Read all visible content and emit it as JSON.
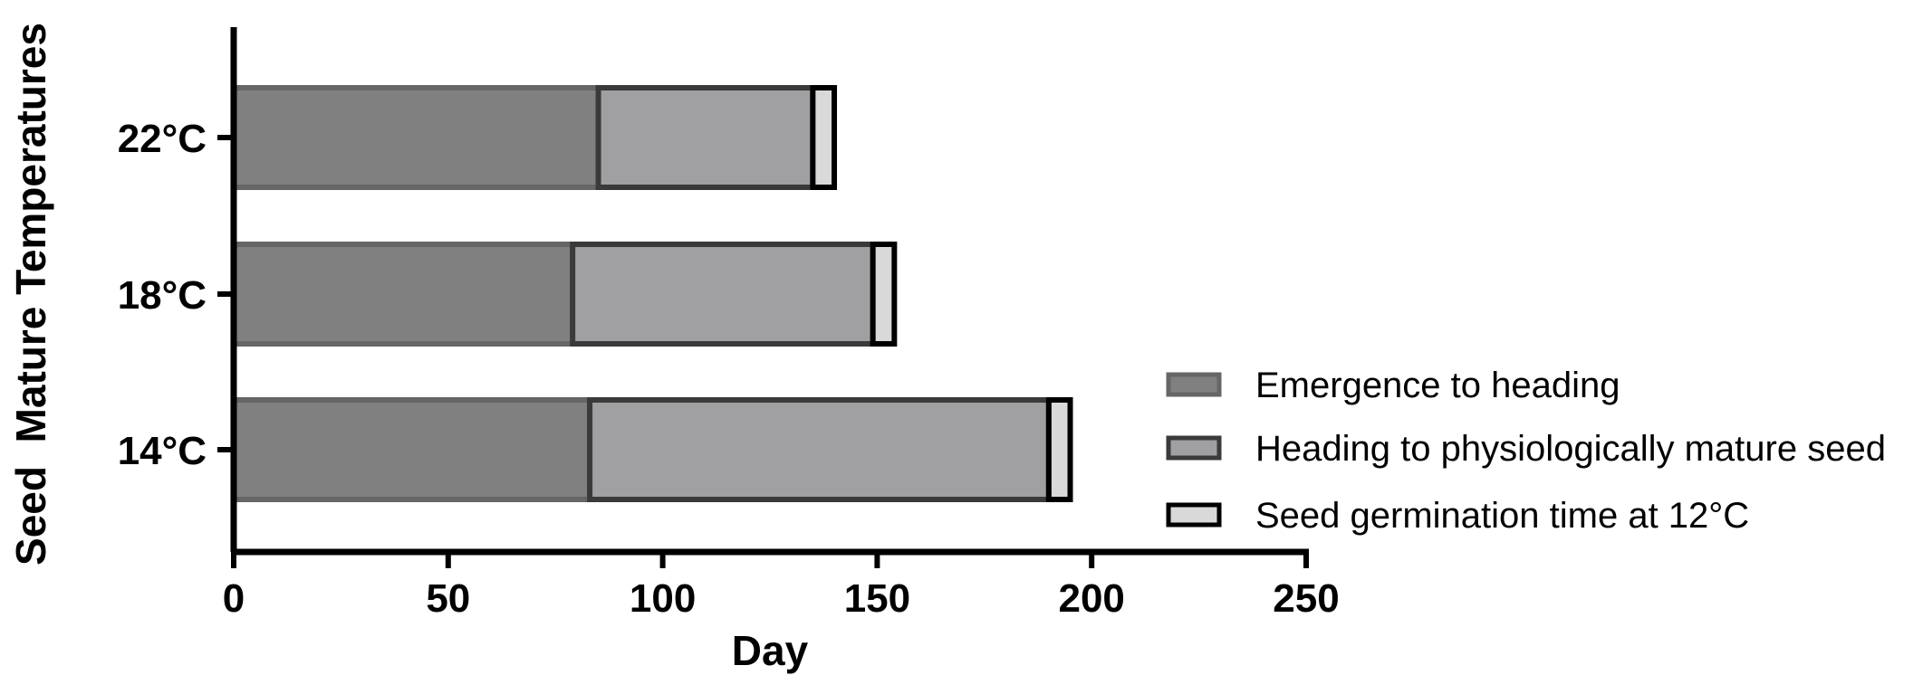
{
  "chart_data": {
    "type": "bar",
    "orientation": "horizontal",
    "stacked": true,
    "title": "",
    "xlabel": "Day",
    "ylabel": "Seed  Mature Temperatures",
    "xlim": [
      0,
      250
    ],
    "x_ticks": [
      0,
      50,
      100,
      150,
      200,
      250
    ],
    "categories": [
      "22°C",
      "18°C",
      "14°C"
    ],
    "series": [
      {
        "name": "Emergence to heading",
        "values": [
          85,
          79,
          83
        ],
        "color": "#808080",
        "stroke": "#666666"
      },
      {
        "name": "Heading to physiologically mature seed",
        "values": [
          50,
          70,
          107
        ],
        "color": "#a0a0a3",
        "stroke": "#3a3a3a"
      },
      {
        "name": "Seed germination time at 12°C",
        "values": [
          5,
          5,
          5
        ],
        "color": "#d9d9d9",
        "stroke": "#000000"
      }
    ],
    "grid": false,
    "legend": "bottom-right"
  }
}
